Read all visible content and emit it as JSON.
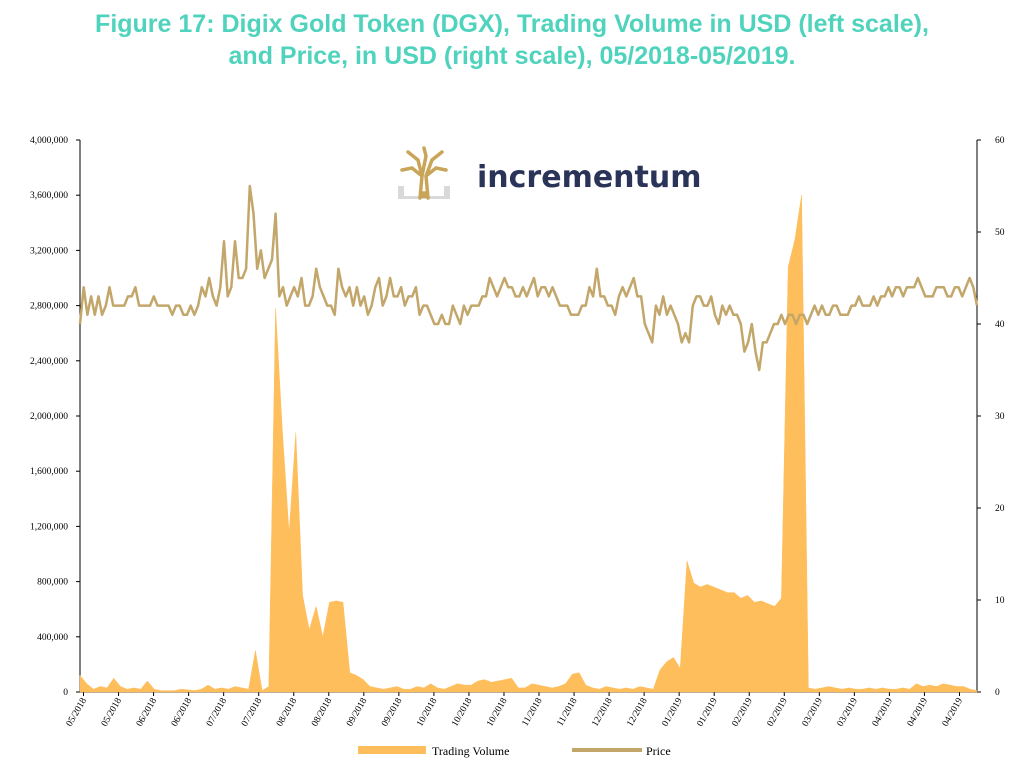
{
  "title": {
    "line1": "Figure 17: Digix Gold Token (DGX), Trading Volume in USD (left scale),",
    "line2": "and Price, in USD (right scale), 05/2018-05/2019."
  },
  "logo": {
    "text": "incrementum",
    "icon": "tree-logo-icon"
  },
  "colors": {
    "volume": "#ffbe5c",
    "price": "#c2a66a",
    "title": "#4fd3bd",
    "brand": "#2a3459"
  },
  "chart_data": {
    "type": "area",
    "title": "Figure 17: Digix Gold Token (DGX), Trading Volume in USD (left scale), and Price, in USD (right scale), 05/2018-05/2019.",
    "xlabel": "",
    "ylabel": "",
    "y_left": {
      "min": 0,
      "max": 4000000,
      "ticks": [
        "0",
        "400,000",
        "800,000",
        "1,200,000",
        "1,600,000",
        "2,000,000",
        "2,400,000",
        "2,800,000",
        "3,200,000",
        "3,600,000",
        "4,000,000"
      ]
    },
    "y_right": {
      "min": 0,
      "max": 60,
      "ticks": [
        "0",
        "10",
        "20",
        "30",
        "40",
        "50",
        "60"
      ]
    },
    "x_ticks": [
      "05/2018",
      "05/2018",
      "06/2018",
      "06/2018",
      "07/2018",
      "07/2018",
      "08/2018",
      "08/2018",
      "09/2018",
      "09/2018",
      "10/2018",
      "10/2018",
      "10/2018",
      "11/2018",
      "11/2018",
      "12/2018",
      "12/2018",
      "01/2019",
      "01/2019",
      "02/2019",
      "02/2019",
      "03/2019",
      "03/2019",
      "04/2019",
      "04/2019",
      "04/2019"
    ],
    "legend": {
      "position": "bottom",
      "items": [
        "Trading Volume",
        "Price"
      ]
    },
    "grid": false,
    "series": [
      {
        "name": "Trading Volume",
        "type": "area",
        "axis": "left",
        "color": "#ffbe5c",
        "values": [
          120000,
          60000,
          20000,
          40000,
          30000,
          100000,
          40000,
          20000,
          30000,
          20000,
          80000,
          20000,
          10000,
          10000,
          10000,
          20000,
          15000,
          10000,
          20000,
          50000,
          20000,
          30000,
          20000,
          40000,
          30000,
          20000,
          300000,
          10000,
          40000,
          2780000,
          1900000,
          1150000,
          1880000,
          700000,
          450000,
          620000,
          400000,
          650000,
          660000,
          650000,
          140000,
          120000,
          90000,
          40000,
          30000,
          20000,
          30000,
          40000,
          20000,
          20000,
          40000,
          30000,
          60000,
          30000,
          20000,
          40000,
          60000,
          50000,
          50000,
          80000,
          90000,
          70000,
          80000,
          90000,
          100000,
          30000,
          30000,
          60000,
          50000,
          40000,
          30000,
          40000,
          60000,
          130000,
          140000,
          50000,
          30000,
          20000,
          40000,
          30000,
          20000,
          30000,
          20000,
          40000,
          30000,
          20000,
          160000,
          220000,
          250000,
          170000,
          950000,
          790000,
          760000,
          780000,
          760000,
          740000,
          720000,
          720000,
          680000,
          700000,
          650000,
          660000,
          640000,
          620000,
          680000,
          3080000,
          3280000,
          3600000,
          30000,
          20000,
          30000,
          40000,
          30000,
          20000,
          30000,
          20000,
          20000,
          30000,
          20000,
          30000,
          20000,
          20000,
          30000,
          20000,
          60000,
          40000,
          50000,
          40000,
          60000,
          50000,
          40000,
          40000,
          20000,
          10000
        ],
        "x_start": 0,
        "x_end": 1
      },
      {
        "name": "Price",
        "type": "line",
        "axis": "right",
        "color": "#c2a66a",
        "values": [
          40,
          44,
          41,
          43,
          41,
          43,
          41,
          42,
          44,
          42,
          42,
          42,
          42,
          43,
          43,
          44,
          42,
          42,
          42,
          42,
          43,
          42,
          42,
          42,
          42,
          41,
          42,
          42,
          41,
          41,
          42,
          41,
          42,
          44,
          43,
          45,
          43,
          42,
          44,
          49,
          43,
          44,
          49,
          45,
          45,
          46,
          55,
          52,
          46,
          48,
          45,
          46,
          47,
          52,
          43,
          44,
          42,
          43,
          44,
          43,
          45,
          42,
          42,
          43,
          46,
          44,
          43,
          42,
          42,
          41,
          46,
          44,
          43,
          44,
          42,
          44,
          42,
          43,
          41,
          42,
          44,
          45,
          42,
          43,
          45,
          43,
          43,
          44,
          42,
          43,
          43,
          44,
          41,
          42,
          42,
          41,
          40,
          40,
          41,
          40,
          40,
          42,
          41,
          40,
          42,
          41,
          42,
          42,
          42,
          43,
          43,
          45,
          44,
          43,
          44,
          45,
          44,
          44,
          43,
          43,
          44,
          43,
          44,
          45,
          43,
          44,
          44,
          43,
          44,
          43,
          42,
          42,
          42,
          41,
          41,
          41,
          42,
          42,
          44,
          43,
          46,
          43,
          43,
          42,
          42,
          41,
          43,
          44,
          43,
          44,
          45,
          43,
          43,
          40,
          39,
          38,
          42,
          41,
          43,
          41,
          42,
          41,
          40,
          38,
          39,
          38,
          42,
          43,
          43,
          42,
          42,
          43,
          41,
          40,
          42,
          41,
          42,
          41,
          41,
          40,
          37,
          38,
          40,
          37,
          35,
          38,
          38,
          39,
          40,
          40,
          41,
          40,
          41,
          41,
          40,
          41,
          41,
          40,
          41,
          42,
          41,
          42,
          41,
          41,
          42,
          42,
          41,
          41,
          41,
          42,
          42,
          43,
          42,
          42,
          42,
          43,
          42,
          43,
          43,
          44,
          43,
          44,
          44,
          43,
          44,
          44,
          44,
          45,
          44,
          43,
          43,
          43,
          44,
          44,
          44,
          43,
          43,
          44,
          44,
          43,
          44,
          45,
          44,
          42
        ],
        "x_start": 0,
        "x_end": 1
      }
    ]
  }
}
